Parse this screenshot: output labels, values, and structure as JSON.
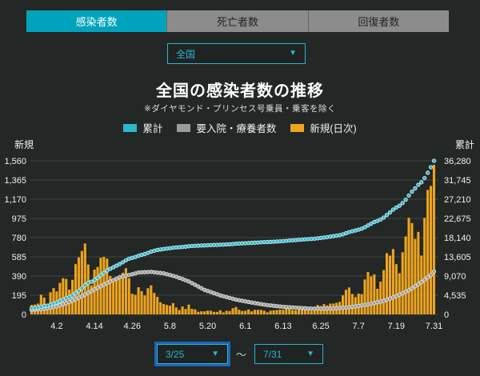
{
  "tabs": [
    {
      "label": "感染者数",
      "active": true
    },
    {
      "label": "死亡者数",
      "active": false
    },
    {
      "label": "回復者数",
      "active": false
    }
  ],
  "region_select": {
    "value": "全国",
    "arrow": "▼"
  },
  "header": {
    "title": "全国の感染者数の推移",
    "subtitle": "※ダイヤモンド・プリンセス号乗員・乗客を除く"
  },
  "legend": [
    {
      "label": "累計",
      "color": "#2FB7CB"
    },
    {
      "label": "要入院・療養者数",
      "color": "#9B9B9B"
    },
    {
      "label": "新規(日次)",
      "color": "#EDA41E"
    }
  ],
  "date_range": {
    "start": "3/25",
    "separator": "～",
    "end": "7/31",
    "arrow": "▼"
  },
  "colors": {
    "background": "#232726",
    "active_tab": "#00A3BC",
    "inactive_tab": "#8C8C8C",
    "select_cyan": "#2AB6CE",
    "focus_blue": "#1A66B6",
    "gridline": "#3F4443",
    "bar_orange": "#EDA41E",
    "cumulative_cyan": "#2FB7CB",
    "active_gray": "#9B9B9B"
  },
  "chart_data": {
    "type": "bar",
    "title": "全国の感染者数の推移",
    "subtitle": "※ダイヤモンド・プリンセス号乗員・乗客を除く",
    "grid": true,
    "x_axis": {
      "start_date": "3/25",
      "end_date": "7/31",
      "days": 129,
      "tick_labels": [
        "4.2",
        "4.14",
        "4.26",
        "5.8",
        "5.20",
        "6.1",
        "6.13",
        "6.25",
        "7.7",
        "7.19",
        "7.31"
      ],
      "tick_day_indices": [
        8,
        20,
        32,
        44,
        56,
        68,
        80,
        92,
        104,
        116,
        128
      ]
    },
    "left_axis": {
      "label": "新規",
      "max": 1560,
      "min": 0,
      "ticks": [
        "1,560",
        "1,365",
        "1,170",
        "975",
        "780",
        "585",
        "390",
        "195",
        "0"
      ]
    },
    "right_axis": {
      "label": "累計",
      "max": 36280,
      "min": 0,
      "ticks": [
        "36,280",
        "31,745",
        "27,210",
        "22,675",
        "18,140",
        "13,605",
        "9,070",
        "4,535",
        "0"
      ]
    },
    "series": [
      {
        "name": "新規(日次)",
        "type": "bar",
        "axis": "left",
        "color": "#EDA41E",
        "values": [
          96,
          100,
          110,
          200,
          170,
          87,
          225,
          267,
          233,
          320,
          368,
          360,
          252,
          351,
          511,
          579,
          644,
          720,
          507,
          296,
          455,
          482,
          576,
          585,
          566,
          390,
          367,
          378,
          377,
          423,
          469,
          368,
          210,
          200,
          276,
          236,
          193,
          266,
          295,
          218,
          178,
          123,
          105,
          96,
          89,
          115,
          70,
          45,
          81,
          55,
          100,
          57,
          51,
          27,
          31,
          31,
          39,
          37,
          26,
          26,
          42,
          21,
          37,
          34,
          63,
          75,
          47,
          35,
          37,
          50,
          31,
          46,
          46,
          46,
          38,
          21,
          38,
          41,
          44,
          49,
          47,
          75,
          73,
          44,
          42,
          68,
          58,
          55,
          56,
          38,
          57,
          96,
          85,
          105,
          92,
          110,
          110,
          118,
          127,
          194,
          250,
          274,
          208,
          176,
          211,
          206,
          355,
          430,
          386,
          407,
          260,
          333,
          450,
          622,
          597,
          664,
          511,
          418,
          632,
          792,
          981,
          927,
          767,
          838,
          598,
          981,
          1264,
          1305,
          1520
        ]
      },
      {
        "name": "累計",
        "type": "dotted_line",
        "axis": "right",
        "color": "#2FB7CB",
        "derivation": "cumulative_sum_of_daily_plus_offset",
        "initial_offset": 1318,
        "final_value": 36280
      },
      {
        "name": "要入院・療養者数",
        "type": "dotted_line",
        "axis": "right",
        "color": "#9B9B9B",
        "control_points": [
          [
            0,
            1050
          ],
          [
            4,
            1300
          ],
          [
            8,
            1900
          ],
          [
            12,
            2900
          ],
          [
            16,
            4300
          ],
          [
            20,
            5900
          ],
          [
            24,
            7400
          ],
          [
            28,
            8800
          ],
          [
            32,
            9480
          ],
          [
            34,
            9900
          ],
          [
            38,
            10050
          ],
          [
            42,
            9700
          ],
          [
            46,
            8900
          ],
          [
            50,
            7800
          ],
          [
            55,
            5800
          ],
          [
            60,
            4500
          ],
          [
            65,
            3500
          ],
          [
            70,
            2800
          ],
          [
            75,
            2200
          ],
          [
            80,
            1800
          ],
          [
            85,
            1550
          ],
          [
            88,
            1400
          ],
          [
            92,
            1350
          ],
          [
            96,
            1400
          ],
          [
            100,
            1600
          ],
          [
            104,
            2000
          ],
          [
            108,
            2500
          ],
          [
            112,
            3200
          ],
          [
            116,
            4300
          ],
          [
            120,
            5700
          ],
          [
            124,
            7600
          ],
          [
            127,
            9300
          ],
          [
            128,
            10100
          ]
        ]
      }
    ]
  }
}
